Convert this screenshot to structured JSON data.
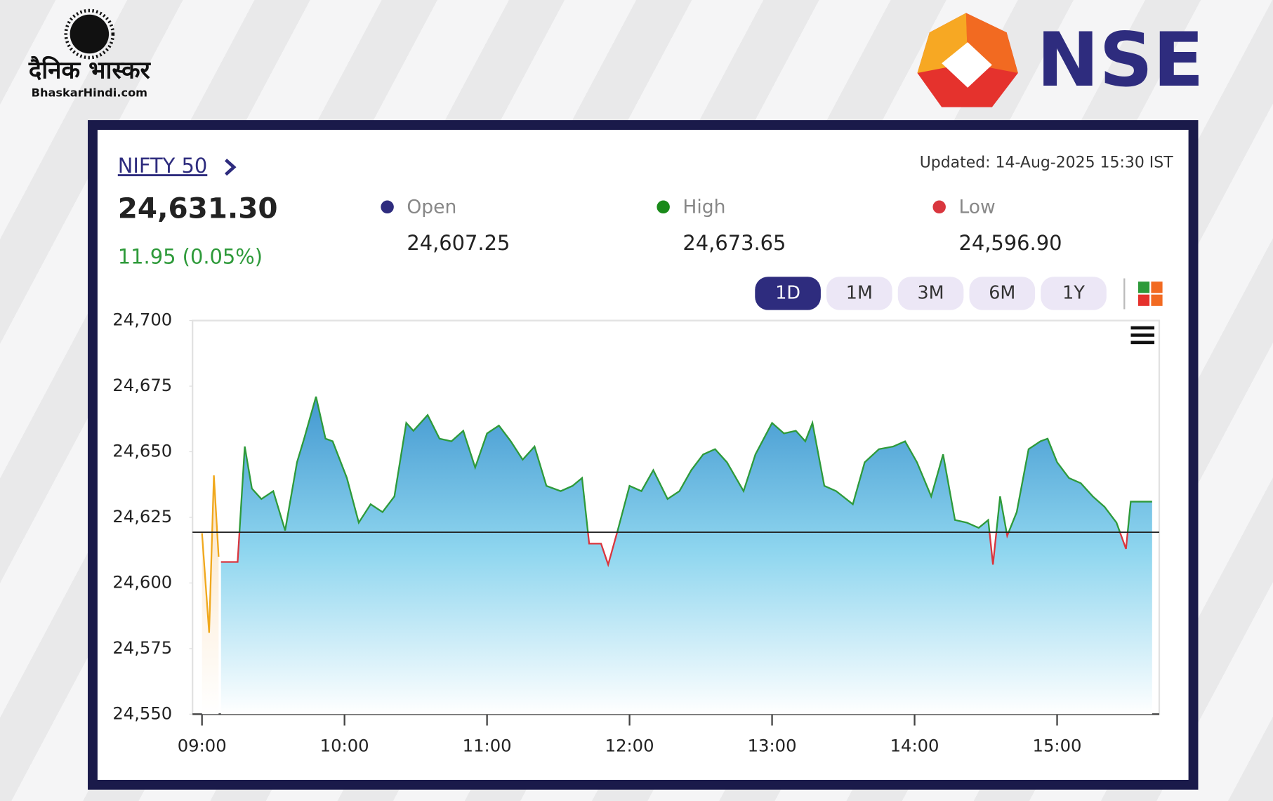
{
  "branding": {
    "bhaskar": "दैनिक भास्कर",
    "bhaskar_site": "BhaskarHindi.com",
    "nse": "NSE"
  },
  "quote": {
    "name": "NIFTY 50",
    "updated": "Updated: 14-Aug-2025 15:30 IST",
    "last": "24,631.30",
    "change": "11.95 (0.05%)",
    "stats": [
      {
        "label": "Open",
        "value": "24,607.25",
        "color": "#2e2c7e"
      },
      {
        "label": "High",
        "value": "24,673.65",
        "color": "#1a8a1a"
      },
      {
        "label": "Low",
        "value": "24,596.90",
        "color": "#d9363e"
      }
    ]
  },
  "ranges": [
    "1D",
    "1M",
    "3M",
    "6M",
    "1Y"
  ],
  "selected_range": 0,
  "chart_data": {
    "type": "area",
    "xlim": [
      "08:56",
      "15:43"
    ],
    "xticks": [
      "09:00",
      "10:00",
      "11:00",
      "12:00",
      "13:00",
      "14:00",
      "15:00"
    ],
    "ylim": [
      24550,
      24700
    ],
    "yticks": [
      {
        "value": 24550,
        "label": "24,550"
      },
      {
        "value": 24575,
        "label": "24,575"
      },
      {
        "value": 24600,
        "label": "24,600"
      },
      {
        "value": 24625,
        "label": "24,625"
      },
      {
        "value": 24650,
        "label": "24,650"
      },
      {
        "value": 24675,
        "label": "24,675"
      },
      {
        "value": 24700,
        "label": "24,700"
      }
    ],
    "baseline": 24619.35,
    "up_color": "#2e9a3a",
    "down_color": "#d9363e",
    "series": [
      {
        "color": "#f0a81c",
        "x": [
          "09:00",
          "09:03",
          "09:05",
          "09:07"
        ],
        "values": [
          24619,
          24581,
          24641,
          24610
        ]
      },
      {
        "color": "#2e9a3a",
        "x": [
          "09:08",
          "09:15",
          "09:18",
          "09:21",
          "09:25",
          "09:30",
          "09:35",
          "09:40",
          "09:43",
          "09:48",
          "09:52",
          "09:55",
          "10:01",
          "10:06",
          "10:11",
          "10:16",
          "10:21",
          "10:26",
          "10:29",
          "10:35",
          "10:40",
          "10:45",
          "10:50",
          "10:55",
          "11:00",
          "11:05",
          "11:10",
          "11:15",
          "11:20",
          "11:25",
          "11:31",
          "11:36",
          "11:40",
          "11:43",
          "11:48",
          "11:51",
          "11:55",
          "12:00",
          "12:05",
          "12:10",
          "12:16",
          "12:21",
          "12:26",
          "12:31",
          "12:36",
          "12:41",
          "12:48",
          "12:53",
          "13:00",
          "13:05",
          "13:10",
          "13:14",
          "13:17",
          "13:22",
          "13:27",
          "13:34",
          "13:39",
          "13:45",
          "13:51",
          "13:56",
          "14:01",
          "14:07",
          "14:12",
          "14:17",
          "14:22",
          "14:27",
          "14:31",
          "14:33",
          "14:36",
          "14:39",
          "14:43",
          "14:48",
          "14:53",
          "14:56",
          "15:00",
          "15:05",
          "15:10",
          "15:15",
          "15:20",
          "15:25",
          "15:29",
          "15:31",
          "15:40"
        ],
        "values": [
          24608,
          24608,
          24652,
          24636,
          24632,
          24635,
          24620,
          24646,
          24655,
          24671,
          24655,
          24654,
          24640,
          24623,
          24630,
          24627,
          24633,
          24661,
          24658,
          24664,
          24655,
          24654,
          24658,
          24644,
          24657,
          24660,
          24654,
          24647,
          24652,
          24637,
          24635,
          24637,
          24640,
          24615,
          24615,
          24607,
          24620,
          24637,
          24635,
          24643,
          24632,
          24635,
          24643,
          24649,
          24651,
          24646,
          24635,
          24649,
          24661,
          24657,
          24658,
          24654,
          24661,
          24637,
          24635,
          24630,
          24646,
          24651,
          24652,
          24654,
          24646,
          24633,
          24649,
          24624,
          24623,
          24621,
          24624,
          24607,
          24633,
          24618,
          24627,
          24651,
          24654,
          24655,
          24646,
          24640,
          24638,
          24633,
          24629,
          24623,
          24613,
          24631,
          24631
        ]
      }
    ]
  }
}
